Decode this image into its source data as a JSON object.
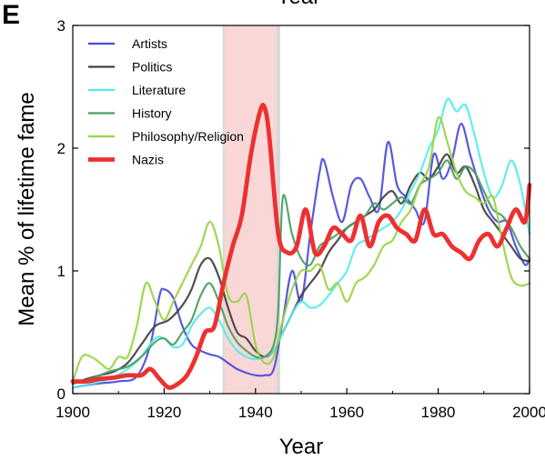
{
  "panel_label": "E",
  "top_label_cropped": "Year",
  "chart_data": {
    "type": "line",
    "title": "",
    "xlabel": "Year",
    "ylabel": "Mean % of lifetime fame",
    "xlim": [
      1900,
      2000
    ],
    "ylim": [
      0,
      3
    ],
    "xticks": [
      1900,
      1920,
      1940,
      1960,
      1980,
      2000
    ],
    "xtick_labels": [
      "1900",
      "1920",
      "1940",
      "1960",
      "1980",
      "2000"
    ],
    "yticks": [
      0,
      1,
      2,
      3
    ],
    "ytick_labels": [
      "0",
      "1",
      "2",
      "3"
    ],
    "grid": false,
    "legend_position": "top-left",
    "shaded_region": {
      "x": [
        1933,
        1945
      ],
      "color": "#f4b6b6"
    },
    "series": [
      {
        "name": "Artists",
        "color": "#4b4bdc",
        "width": 2.2,
        "x": [
          1900,
          1905,
          1910,
          1914,
          1917,
          1919,
          1920,
          1922,
          1924,
          1926,
          1928,
          1930,
          1932,
          1934,
          1936,
          1938,
          1940,
          1942,
          1944,
          1946,
          1948,
          1950,
          1952,
          1954,
          1955,
          1957,
          1959,
          1961,
          1963,
          1965,
          1967,
          1969,
          1971,
          1973,
          1975,
          1977,
          1979,
          1981,
          1983,
          1985,
          1987,
          1989,
          1991,
          1993,
          1995,
          1997,
          1999,
          2000
        ],
        "y": [
          0.05,
          0.08,
          0.1,
          0.14,
          0.4,
          0.8,
          0.85,
          0.78,
          0.55,
          0.4,
          0.35,
          0.32,
          0.3,
          0.25,
          0.2,
          0.17,
          0.15,
          0.15,
          0.2,
          0.6,
          1.0,
          0.75,
          1.3,
          1.8,
          1.9,
          1.6,
          1.4,
          1.7,
          1.75,
          1.6,
          1.5,
          2.05,
          1.7,
          1.6,
          1.5,
          1.4,
          1.95,
          1.75,
          1.9,
          2.2,
          1.95,
          1.7,
          1.5,
          1.4,
          1.4,
          1.2,
          1.05,
          1.1
        ]
      },
      {
        "name": "Politics",
        "color": "#404040",
        "width": 2.2,
        "x": [
          1900,
          1903,
          1906,
          1909,
          1912,
          1915,
          1918,
          1921,
          1924,
          1926,
          1928,
          1930,
          1932,
          1934,
          1936,
          1938,
          1940,
          1942,
          1944,
          1946,
          1948,
          1950,
          1952,
          1954,
          1956,
          1958,
          1960,
          1962,
          1964,
          1966,
          1968,
          1970,
          1972,
          1974,
          1976,
          1978,
          1980,
          1982,
          1984,
          1986,
          1988,
          1990,
          1992,
          1994,
          1996,
          1998,
          2000
        ],
        "y": [
          0.08,
          0.12,
          0.15,
          0.18,
          0.25,
          0.4,
          0.55,
          0.6,
          0.72,
          0.85,
          1.05,
          1.1,
          0.95,
          0.7,
          0.5,
          0.45,
          0.35,
          0.3,
          0.35,
          0.5,
          0.65,
          0.8,
          0.9,
          1.0,
          1.15,
          1.25,
          1.35,
          1.4,
          1.45,
          1.5,
          1.6,
          1.65,
          1.55,
          1.7,
          1.8,
          1.75,
          1.85,
          1.95,
          1.8,
          1.85,
          1.7,
          1.5,
          1.4,
          1.3,
          1.2,
          1.1,
          1.08
        ]
      },
      {
        "name": "Literature",
        "color": "#55ecec",
        "width": 2.2,
        "x": [
          1900,
          1904,
          1908,
          1912,
          1915,
          1918,
          1920,
          1922,
          1924,
          1926,
          1928,
          1930,
          1932,
          1934,
          1936,
          1938,
          1940,
          1942,
          1944,
          1946,
          1948,
          1950,
          1952,
          1954,
          1956,
          1958,
          1960,
          1962,
          1964,
          1966,
          1968,
          1970,
          1972,
          1974,
          1976,
          1978,
          1980,
          1982,
          1984,
          1986,
          1988,
          1990,
          1992,
          1994,
          1996,
          1998,
          2000
        ],
        "y": [
          0.05,
          0.08,
          0.12,
          0.2,
          0.3,
          0.45,
          0.45,
          0.38,
          0.4,
          0.55,
          0.65,
          0.7,
          0.6,
          0.45,
          0.35,
          0.3,
          0.28,
          0.3,
          0.35,
          0.5,
          0.65,
          0.75,
          0.7,
          0.72,
          0.8,
          0.9,
          1.0,
          1.2,
          1.25,
          1.3,
          1.35,
          1.4,
          1.5,
          1.65,
          1.8,
          2.0,
          2.15,
          2.4,
          2.3,
          2.35,
          2.1,
          1.8,
          1.6,
          1.7,
          1.9,
          1.7,
          1.3
        ]
      },
      {
        "name": "History",
        "color": "#4a9e62",
        "width": 2.2,
        "x": [
          1900,
          1904,
          1908,
          1912,
          1915,
          1918,
          1920,
          1922,
          1924,
          1926,
          1928,
          1930,
          1932,
          1934,
          1936,
          1938,
          1940,
          1942,
          1944,
          1945,
          1946,
          1948,
          1950,
          1952,
          1954,
          1956,
          1958,
          1960,
          1962,
          1964,
          1966,
          1968,
          1970,
          1972,
          1974,
          1976,
          1978,
          1980,
          1982,
          1984,
          1986,
          1988,
          1990,
          1992,
          1994,
          1996,
          1998,
          2000
        ],
        "y": [
          0.08,
          0.12,
          0.18,
          0.22,
          0.3,
          0.42,
          0.45,
          0.4,
          0.5,
          0.6,
          0.8,
          0.9,
          0.75,
          0.55,
          0.42,
          0.35,
          0.3,
          0.3,
          0.4,
          0.7,
          1.6,
          1.3,
          1.1,
          1.05,
          1.2,
          1.25,
          1.3,
          1.35,
          1.4,
          1.45,
          1.55,
          1.5,
          1.55,
          1.6,
          1.55,
          1.7,
          1.75,
          1.8,
          1.9,
          1.75,
          1.85,
          1.8,
          1.65,
          1.5,
          1.45,
          1.35,
          1.2,
          1.1
        ]
      },
      {
        "name": "Philosophy/Religion",
        "color": "#98d444",
        "width": 2.2,
        "x": [
          1900,
          1902,
          1904,
          1906,
          1908,
          1910,
          1912,
          1914,
          1916,
          1918,
          1920,
          1922,
          1924,
          1926,
          1928,
          1930,
          1932,
          1934,
          1936,
          1938,
          1940,
          1942,
          1944,
          1946,
          1948,
          1950,
          1952,
          1954,
          1956,
          1958,
          1960,
          1962,
          1964,
          1966,
          1968,
          1970,
          1972,
          1974,
          1976,
          1978,
          1980,
          1982,
          1984,
          1986,
          1988,
          1990,
          1992,
          1994,
          1996,
          1998,
          2000
        ],
        "y": [
          0.1,
          0.3,
          0.3,
          0.25,
          0.2,
          0.3,
          0.3,
          0.55,
          0.9,
          0.75,
          0.6,
          0.75,
          0.9,
          1.05,
          1.2,
          1.4,
          1.2,
          0.8,
          0.75,
          0.8,
          0.4,
          0.25,
          0.3,
          0.6,
          0.85,
          1.0,
          1.0,
          1.05,
          0.85,
          0.9,
          0.75,
          0.9,
          0.95,
          1.05,
          1.2,
          1.25,
          1.4,
          1.5,
          1.7,
          1.85,
          2.25,
          2.05,
          1.8,
          1.65,
          1.6,
          1.55,
          1.6,
          1.25,
          0.95,
          0.88,
          0.9
        ]
      },
      {
        "name": "Nazis",
        "color": "#ed3030",
        "width": 4.8,
        "x": [
          1900,
          1903,
          1906,
          1909,
          1912,
          1915,
          1917,
          1919,
          1921,
          1923,
          1925,
          1927,
          1929,
          1931,
          1933,
          1935,
          1937,
          1939,
          1941,
          1942,
          1943,
          1945,
          1947,
          1949,
          1951,
          1953,
          1955,
          1957,
          1959,
          1961,
          1963,
          1965,
          1967,
          1969,
          1971,
          1973,
          1975,
          1977,
          1979,
          1981,
          1983,
          1985,
          1987,
          1989,
          1991,
          1993,
          1995,
          1997,
          1999,
          2000
        ],
        "y": [
          0.1,
          0.1,
          0.12,
          0.13,
          0.15,
          0.15,
          0.2,
          0.12,
          0.05,
          0.08,
          0.15,
          0.3,
          0.5,
          0.55,
          0.9,
          1.2,
          1.45,
          1.95,
          2.3,
          2.33,
          2.1,
          1.3,
          1.15,
          1.2,
          1.5,
          1.15,
          1.2,
          1.35,
          1.3,
          1.25,
          1.45,
          1.2,
          1.4,
          1.45,
          1.35,
          1.3,
          1.25,
          1.5,
          1.3,
          1.3,
          1.2,
          1.15,
          1.1,
          1.25,
          1.3,
          1.2,
          1.35,
          1.5,
          1.4,
          1.7
        ]
      }
    ]
  }
}
